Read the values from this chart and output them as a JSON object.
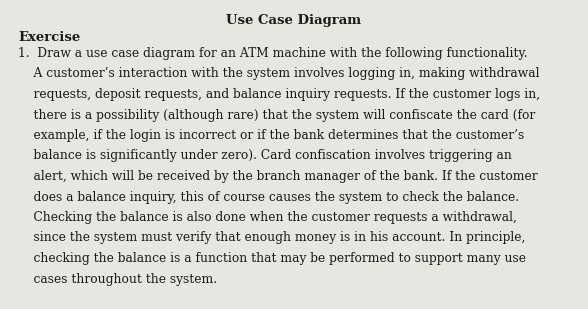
{
  "title": "Use Case Diagram",
  "title_fontsize": 9.5,
  "exercise_label": "Exercise",
  "exercise_fontsize": 9.5,
  "body_lines": [
    "1.  Draw a use case diagram for an ATM machine with the following functionality.",
    "    A customer’s interaction with the system involves logging in, making withdrawal",
    "    requests, deposit requests, and balance inquiry requests. If the customer logs in,",
    "    there is a possibility (although rare) that the system will confiscate the card (for",
    "    example, if the login is incorrect or if the bank determines that the customer’s",
    "    balance is significantly under zero). Card confiscation involves triggering an",
    "    alert, which will be received by the branch manager of the bank. If the customer",
    "    does a balance inquiry, this of course causes the system to check the balance.",
    "    Checking the balance is also done when the customer requests a withdrawal,",
    "    since the system must verify that enough money is in his account. In principle,",
    "    checking the balance is a function that may be performed to support many use",
    "    cases throughout the system."
  ],
  "body_fontsize": 8.8,
  "background_color": "#e8e6e0",
  "text_color": "#1a1a1a",
  "fig_width": 5.88,
  "fig_height": 3.09,
  "dpi": 100
}
